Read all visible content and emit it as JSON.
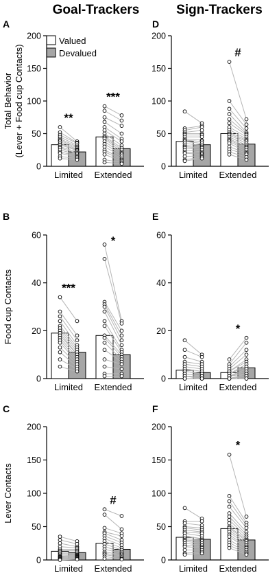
{
  "column_titles": [
    "Goal-Trackers",
    "Sign-Trackers"
  ],
  "legend": {
    "valued_label": "Valued",
    "devalued_label": "Devalued"
  },
  "colors": {
    "valued_fill": "#ffffff",
    "devalued_fill": "#a6a6a6",
    "trace": "#b5b5b5"
  },
  "chart_data": [
    {
      "panel": "A",
      "type": "bar",
      "group": "Goal-Trackers",
      "ylabel": "Total Behavior\n(Lever + Food cup Contacts)",
      "ylim": [
        0,
        200
      ],
      "yticks": [
        0,
        50,
        100,
        150,
        200
      ],
      "categories": [
        "Limited",
        "Extended"
      ],
      "series": [
        {
          "name": "Valued",
          "values": [
            33,
            45
          ]
        },
        {
          "name": "Devalued",
          "values": [
            22,
            27
          ]
        }
      ],
      "significance": [
        "**",
        "***"
      ],
      "individual": [
        {
          "valued": [
            60,
            52,
            48,
            45,
            42,
            40,
            38,
            35,
            33,
            30,
            28,
            25,
            22,
            20,
            15,
            12
          ],
          "devalued": [
            38,
            36,
            35,
            32,
            30,
            28,
            26,
            25,
            24,
            22,
            20,
            18,
            16,
            14,
            12,
            10
          ]
        },
        {
          "valued": [
            92,
            85,
            75,
            68,
            60,
            55,
            50,
            46,
            44,
            42,
            38,
            34,
            30,
            25,
            22,
            18,
            10,
            6
          ],
          "devalued": [
            78,
            70,
            62,
            50,
            42,
            38,
            32,
            28,
            25,
            22,
            20,
            18,
            15,
            12,
            10,
            8,
            6,
            4
          ]
        }
      ]
    },
    {
      "panel": "B",
      "type": "bar",
      "group": "Goal-Trackers",
      "ylabel": "Food cup Contacts",
      "ylim": [
        0,
        60
      ],
      "yticks": [
        0,
        20,
        40,
        60
      ],
      "categories": [
        "Limited",
        "Extended"
      ],
      "series": [
        {
          "name": "Valued",
          "values": [
            19,
            18
          ]
        },
        {
          "name": "Devalued",
          "values": [
            11,
            10
          ]
        }
      ],
      "significance": [
        "***",
        "*"
      ],
      "individual": [
        {
          "valued": [
            34,
            28,
            26,
            24,
            22,
            21,
            20,
            19,
            18,
            17,
            16,
            15,
            13,
            11,
            8,
            5
          ],
          "devalued": [
            24,
            18,
            16,
            14,
            13,
            12,
            11,
            10,
            10,
            9,
            8,
            7,
            6,
            5,
            4,
            3
          ]
        },
        {
          "valued": [
            56,
            50,
            32,
            31,
            30,
            28,
            24,
            22,
            18,
            17,
            15,
            12,
            8,
            5,
            2,
            1
          ],
          "devalued": [
            24,
            23,
            20,
            18,
            16,
            14,
            12,
            11,
            10,
            9,
            8,
            7,
            6,
            4,
            2,
            1
          ]
        }
      ]
    },
    {
      "panel": "C",
      "type": "bar",
      "group": "Goal-Trackers",
      "ylabel": "Lever Contacts",
      "ylim": [
        0,
        200
      ],
      "yticks": [
        0,
        50,
        100,
        150,
        200
      ],
      "categories": [
        "Limited",
        "Extended"
      ],
      "series": [
        {
          "name": "Valued",
          "values": [
            13,
            25
          ]
        },
        {
          "name": "Devalued",
          "values": [
            11,
            16
          ]
        }
      ],
      "significance": [
        "",
        "#"
      ],
      "individual": [
        {
          "valued": [
            35,
            30,
            25,
            20,
            16,
            14,
            12,
            10,
            8,
            6,
            5,
            4,
            3,
            2,
            1,
            0
          ],
          "devalued": [
            28,
            24,
            20,
            18,
            16,
            14,
            12,
            10,
            8,
            7,
            6,
            5,
            4,
            3,
            2,
            1
          ]
        },
        {
          "valued": [
            76,
            68,
            48,
            42,
            40,
            36,
            32,
            28,
            24,
            20,
            16,
            12,
            10,
            8,
            5,
            2
          ],
          "devalued": [
            66,
            46,
            40,
            36,
            30,
            26,
            22,
            18,
            15,
            12,
            10,
            8,
            6,
            4,
            2,
            1
          ]
        }
      ]
    },
    {
      "panel": "D",
      "type": "bar",
      "group": "Sign-Trackers",
      "ylabel": "",
      "ylim": [
        0,
        200
      ],
      "yticks": [
        0,
        50,
        100,
        150,
        200
      ],
      "categories": [
        "Limited",
        "Extended"
      ],
      "series": [
        {
          "name": "Valued",
          "values": [
            38,
            50
          ]
        },
        {
          "name": "Devalued",
          "values": [
            33,
            34
          ]
        }
      ],
      "significance": [
        "",
        "#"
      ],
      "individual": [
        {
          "valued": [
            84,
            58,
            55,
            52,
            50,
            48,
            45,
            42,
            40,
            38,
            35,
            32,
            30,
            28,
            25,
            22,
            20,
            15,
            10,
            8
          ],
          "devalued": [
            66,
            62,
            60,
            55,
            50,
            48,
            45,
            40,
            38,
            35,
            32,
            30,
            28,
            25,
            22,
            20,
            18,
            16,
            14,
            12
          ]
        },
        {
          "valued": [
            160,
            100,
            88,
            80,
            72,
            66,
            60,
            56,
            52,
            50,
            48,
            45,
            42,
            40,
            38,
            35,
            30,
            26,
            22,
            18
          ],
          "devalued": [
            72,
            64,
            58,
            52,
            50,
            48,
            45,
            42,
            40,
            38,
            35,
            32,
            30,
            28,
            25,
            22,
            20,
            18,
            14,
            10
          ]
        }
      ]
    },
    {
      "panel": "E",
      "type": "bar",
      "group": "Sign-Trackers",
      "ylabel": "",
      "ylim": [
        0,
        60
      ],
      "yticks": [
        0,
        20,
        40,
        60
      ],
      "categories": [
        "Limited",
        "Extended"
      ],
      "series": [
        {
          "name": "Valued",
          "values": [
            3.5,
            2.5
          ]
        },
        {
          "name": "Devalued",
          "values": [
            2.5,
            4.5
          ]
        }
      ],
      "significance": [
        "",
        "*"
      ],
      "individual": [
        {
          "valued": [
            16,
            12,
            9,
            7,
            6,
            5,
            4,
            3,
            3,
            2,
            2,
            1,
            1,
            0,
            0,
            0
          ],
          "devalued": [
            10,
            9,
            7,
            6,
            5,
            4,
            3,
            2,
            2,
            1,
            1,
            1,
            0,
            0,
            0,
            0
          ]
        },
        {
          "valued": [
            8,
            6,
            5,
            4,
            3,
            3,
            2,
            2,
            1,
            1,
            1,
            0,
            0,
            0,
            0,
            0
          ],
          "devalued": [
            17,
            15,
            12,
            10,
            8,
            7,
            6,
            5,
            4,
            3,
            2,
            2,
            1,
            1,
            0,
            0
          ]
        }
      ]
    },
    {
      "panel": "F",
      "type": "bar",
      "group": "Sign-Trackers",
      "ylabel": "",
      "ylim": [
        0,
        200
      ],
      "yticks": [
        0,
        50,
        100,
        150,
        200
      ],
      "categories": [
        "Limited",
        "Extended"
      ],
      "series": [
        {
          "name": "Valued",
          "values": [
            34,
            47
          ]
        },
        {
          "name": "Devalued",
          "values": [
            31,
            30
          ]
        }
      ],
      "significance": [
        "",
        "*"
      ],
      "individual": [
        {
          "valued": [
            78,
            58,
            55,
            50,
            48,
            45,
            42,
            40,
            36,
            32,
            30,
            28,
            25,
            22,
            20,
            15,
            10,
            8
          ],
          "devalued": [
            62,
            58,
            52,
            48,
            45,
            42,
            40,
            36,
            32,
            30,
            28,
            25,
            22,
            20,
            18,
            15,
            12,
            10
          ]
        },
        {
          "valued": [
            158,
            96,
            88,
            80,
            70,
            65,
            60,
            55,
            50,
            48,
            45,
            42,
            38,
            35,
            30,
            26,
            22,
            18
          ],
          "devalued": [
            65,
            56,
            52,
            48,
            42,
            38,
            35,
            32,
            30,
            28,
            25,
            22,
            20,
            18,
            15,
            12,
            10,
            8
          ]
        }
      ]
    }
  ]
}
